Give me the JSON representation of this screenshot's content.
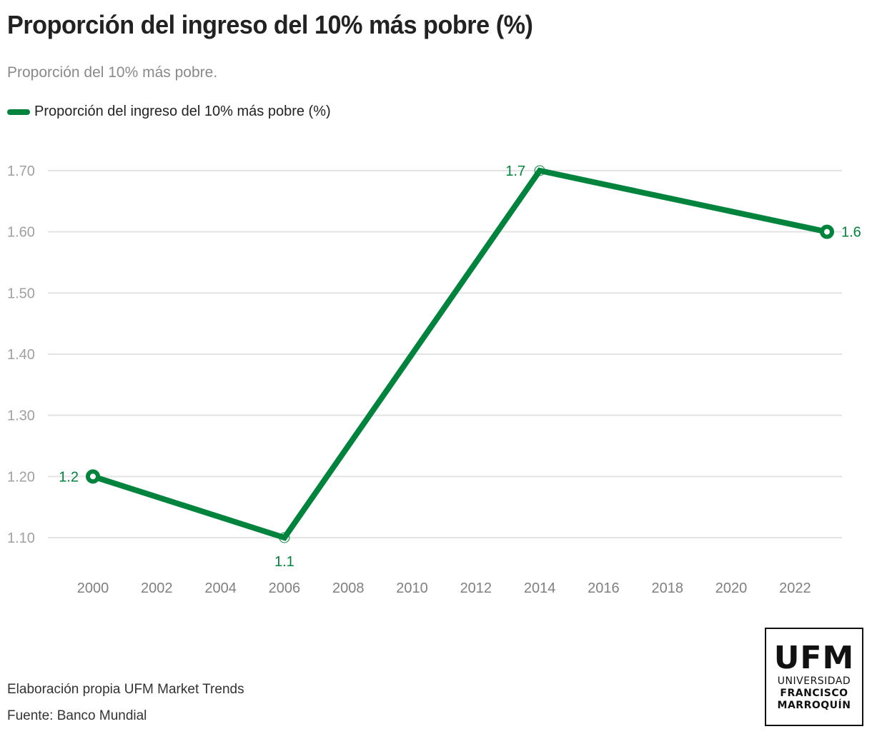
{
  "header": {
    "title": "Proporción del ingreso del 10% más pobre (%)",
    "subtitle": "Proporción del 10% más pobre."
  },
  "legend": {
    "label": "Proporción del ingreso del 10% más pobre (%)",
    "color": "#00843d"
  },
  "footer": {
    "credit": "Elaboración propia UFM Market Trends",
    "source": "Fuente: Banco Mundial"
  },
  "logo": {
    "main": "UFM",
    "line1": "UNIVERSIDAD",
    "line2": "FRANCISCO",
    "line3": "MARROQUÍN"
  },
  "chart_data": {
    "type": "line",
    "title": "Proporción del ingreso del 10% más pobre (%)",
    "subtitle": "Proporción del 10% más pobre.",
    "xlabel": "",
    "ylabel": "",
    "x": [
      2000,
      2006,
      2014,
      2023
    ],
    "series": [
      {
        "name": "Proporción del ingreso del 10% más pobre (%)",
        "color": "#00843d",
        "values": [
          1.2,
          1.1,
          1.7,
          1.6
        ],
        "labels": [
          "1.2",
          "1.1",
          "1.7",
          "1.6"
        ],
        "label_positions": [
          "left",
          "below",
          "left",
          "right"
        ],
        "marker_styles": [
          "thick",
          "thin",
          "thin",
          "thick"
        ]
      }
    ],
    "xlim": [
      2000,
      2023
    ],
    "ylim": [
      1.1,
      1.7
    ],
    "x_ticks": [
      2000,
      2002,
      2004,
      2006,
      2008,
      2010,
      2012,
      2014,
      2016,
      2018,
      2020,
      2022
    ],
    "x_tick_labels": [
      "2000",
      "2002",
      "2004",
      "2006",
      "2008",
      "2010",
      "2012",
      "2014",
      "2016",
      "2018",
      "2020",
      "2022"
    ],
    "y_ticks": [
      1.1,
      1.2,
      1.3,
      1.4,
      1.5,
      1.6,
      1.7
    ],
    "y_tick_labels": [
      "1.10",
      "1.20",
      "1.30",
      "1.40",
      "1.50",
      "1.60",
      "1.70"
    ],
    "grid": true,
    "legend_position": "top-left"
  }
}
